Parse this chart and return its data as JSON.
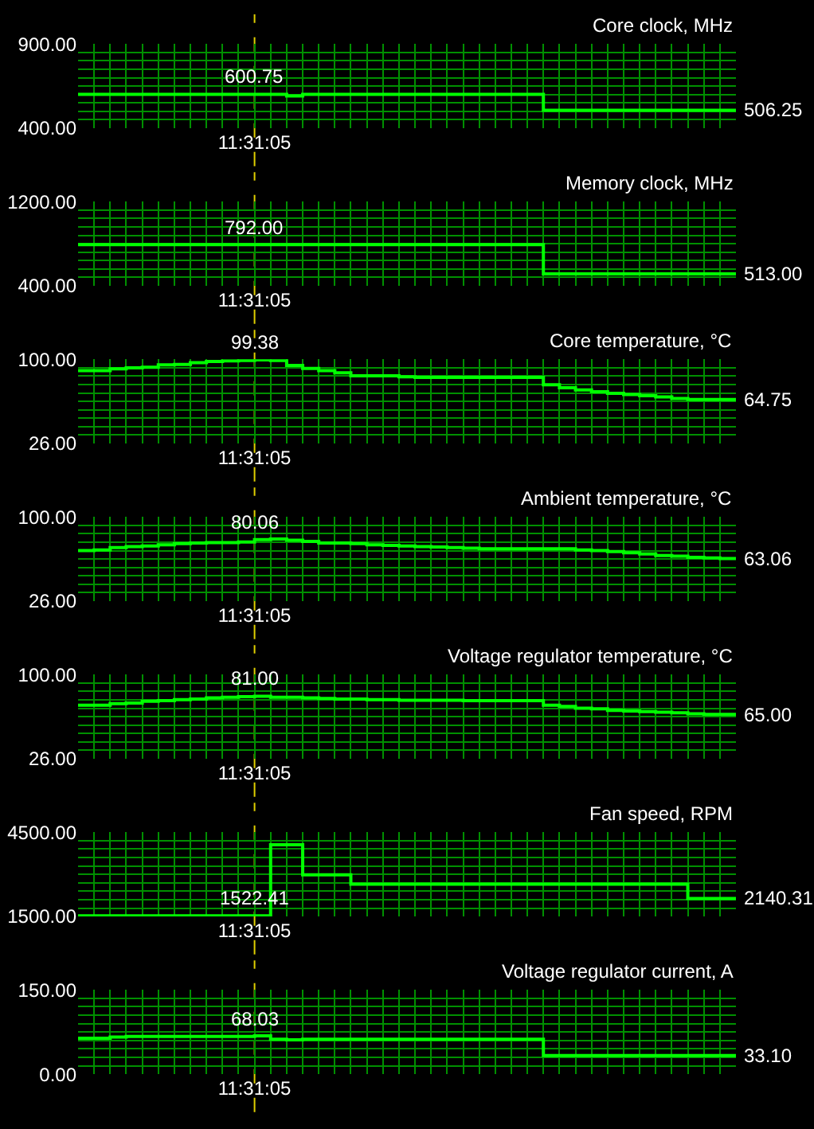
{
  "chart_data": [
    {
      "type": "step",
      "title": "Core clock, MHz",
      "categories": [
        null,
        null,
        null,
        null,
        null,
        null,
        null,
        null,
        null,
        null,
        null,
        "11:31:05",
        null,
        null,
        null,
        null,
        null,
        null,
        null,
        null,
        null,
        null,
        null,
        null,
        null,
        null,
        null,
        null,
        null,
        null,
        null,
        null,
        null,
        null,
        null,
        null,
        null,
        null,
        null,
        null,
        null,
        null
      ],
      "series": [
        {
          "color": "#00ff00",
          "values": [
            600.75,
            600.75,
            600.75,
            600.75,
            600.75,
            600.75,
            600.75,
            600.75,
            600.75,
            600.75,
            600.75,
            600.75,
            600.75,
            592,
            600.75,
            600.75,
            600.75,
            600.75,
            600.75,
            600.75,
            600.75,
            600.75,
            600.75,
            600.75,
            600.75,
            600.75,
            600.75,
            600.75,
            600.75,
            506.25,
            506.25,
            506.25,
            506.25,
            506.25,
            506.25,
            506.25,
            506.25,
            506.25,
            506.25,
            506.25,
            506.25,
            506.25
          ],
          "value_labels": [
            null,
            null,
            null,
            null,
            null,
            null,
            null,
            null,
            null,
            null,
            null,
            "600.75",
            null,
            null,
            null,
            null,
            null,
            null,
            null,
            null,
            null,
            null,
            null,
            null,
            null,
            null,
            null,
            null,
            null,
            null,
            null,
            null,
            null,
            null,
            null,
            null,
            null,
            null,
            null,
            null,
            null,
            "506.25"
          ]
        }
      ],
      "ylim": [
        400,
        900
      ],
      "yticks": [
        {
          "value": 400,
          "label": "400.00"
        },
        {
          "value": 900,
          "label": "900.00"
        }
      ],
      "grid": true,
      "ref_lines": [
        {
          "axis": "x",
          "value": "11:31:05",
          "color": "#e0d000",
          "line_style": "dashed"
        }
      ]
    },
    {
      "type": "step",
      "title": "Memory clock, MHz",
      "categories": [
        null,
        null,
        null,
        null,
        null,
        null,
        null,
        null,
        null,
        null,
        null,
        "11:31:05",
        null,
        null,
        null,
        null,
        null,
        null,
        null,
        null,
        null,
        null,
        null,
        null,
        null,
        null,
        null,
        null,
        null,
        null,
        null,
        null,
        null,
        null,
        null,
        null,
        null,
        null,
        null,
        null,
        null,
        null
      ],
      "series": [
        {
          "color": "#00ff00",
          "values": [
            792,
            792,
            792,
            792,
            792,
            792,
            792,
            792,
            792,
            792,
            792,
            792,
            792,
            792,
            792,
            792,
            792,
            792,
            792,
            792,
            792,
            792,
            792,
            792,
            792,
            792,
            792,
            792,
            792,
            513,
            513,
            513,
            513,
            513,
            513,
            513,
            513,
            513,
            513,
            513,
            513,
            513
          ],
          "value_labels": [
            null,
            null,
            null,
            null,
            null,
            null,
            null,
            null,
            null,
            null,
            null,
            "792.00",
            null,
            null,
            null,
            null,
            null,
            null,
            null,
            null,
            null,
            null,
            null,
            null,
            null,
            null,
            null,
            null,
            null,
            null,
            null,
            null,
            null,
            null,
            null,
            null,
            null,
            null,
            null,
            null,
            null,
            "513.00"
          ]
        }
      ],
      "ylim": [
        400,
        1200
      ],
      "yticks": [
        {
          "value": 400,
          "label": "400.00"
        },
        {
          "value": 1200,
          "label": "1200.00"
        }
      ],
      "grid": true,
      "ref_lines": [
        {
          "axis": "x",
          "value": "11:31:05",
          "color": "#e0d000",
          "line_style": "dashed"
        }
      ]
    },
    {
      "type": "step",
      "title": "Core temperature, °C",
      "categories": [
        null,
        null,
        null,
        null,
        null,
        null,
        null,
        null,
        null,
        null,
        null,
        "11:31:05",
        null,
        null,
        null,
        null,
        null,
        null,
        null,
        null,
        null,
        null,
        null,
        null,
        null,
        null,
        null,
        null,
        null,
        null,
        null,
        null,
        null,
        null,
        null,
        null,
        null,
        null,
        null,
        null,
        null,
        null
      ],
      "series": [
        {
          "color": "#00ff00",
          "values": [
            90,
            90,
            91.5,
            92.5,
            93,
            95,
            95.5,
            97,
            98,
            98.5,
            99,
            99.38,
            99,
            94.5,
            92,
            90,
            88,
            85.5,
            85.5,
            85.5,
            84.5,
            84,
            84,
            84,
            84,
            84,
            84,
            84,
            84,
            77.5,
            75,
            73,
            71.5,
            70,
            69,
            68,
            67,
            65.5,
            64.75,
            64.75,
            64.75,
            64.75
          ],
          "value_labels": [
            null,
            null,
            null,
            null,
            null,
            null,
            null,
            null,
            null,
            null,
            null,
            "99.38",
            null,
            null,
            null,
            null,
            null,
            null,
            null,
            null,
            null,
            null,
            null,
            null,
            null,
            null,
            null,
            null,
            null,
            null,
            null,
            null,
            null,
            null,
            null,
            null,
            null,
            null,
            null,
            null,
            null,
            "64.75"
          ]
        }
      ],
      "ylim": [
        26,
        100
      ],
      "yticks": [
        {
          "value": 26,
          "label": "26.00"
        },
        {
          "value": 100,
          "label": "100.00"
        }
      ],
      "grid": true,
      "ref_lines": [
        {
          "axis": "x",
          "value": "11:31:05",
          "color": "#e0d000",
          "line_style": "dashed"
        }
      ]
    },
    {
      "type": "step",
      "title": "Ambient temperature, °C",
      "categories": [
        null,
        null,
        null,
        null,
        null,
        null,
        null,
        null,
        null,
        null,
        null,
        "11:31:05",
        null,
        null,
        null,
        null,
        null,
        null,
        null,
        null,
        null,
        null,
        null,
        null,
        null,
        null,
        null,
        null,
        null,
        null,
        null,
        null,
        null,
        null,
        null,
        null,
        null,
        null,
        null,
        null,
        null,
        null
      ],
      "series": [
        {
          "color": "#00ff00",
          "values": [
            70.5,
            71,
            73,
            74,
            74.5,
            75.5,
            76.5,
            77,
            77.5,
            77.5,
            78,
            80.06,
            80.5,
            79.5,
            78.5,
            77,
            77,
            76.5,
            75.5,
            75,
            74.5,
            74,
            73.5,
            73,
            72.5,
            72,
            72,
            72,
            72,
            72,
            72,
            71,
            70.5,
            69.5,
            68.5,
            67.5,
            66,
            65.5,
            64.5,
            64,
            63.5,
            63.06
          ],
          "value_labels": [
            null,
            null,
            null,
            null,
            null,
            null,
            null,
            null,
            null,
            null,
            null,
            "80.06",
            null,
            null,
            null,
            null,
            null,
            null,
            null,
            null,
            null,
            null,
            null,
            null,
            null,
            null,
            null,
            null,
            null,
            null,
            null,
            null,
            null,
            null,
            null,
            null,
            null,
            null,
            null,
            null,
            null,
            "63.06"
          ]
        }
      ],
      "ylim": [
        26,
        100
      ],
      "yticks": [
        {
          "value": 26,
          "label": "26.00"
        },
        {
          "value": 100,
          "label": "100.00"
        }
      ],
      "grid": true,
      "ref_lines": [
        {
          "axis": "x",
          "value": "11:31:05",
          "color": "#e0d000",
          "line_style": "dashed"
        }
      ]
    },
    {
      "type": "step",
      "title": "Voltage regulator temperature, °C",
      "categories": [
        null,
        null,
        null,
        null,
        null,
        null,
        null,
        null,
        null,
        null,
        null,
        "11:31:05",
        null,
        null,
        null,
        null,
        null,
        null,
        null,
        null,
        null,
        null,
        null,
        null,
        null,
        null,
        null,
        null,
        null,
        null,
        null,
        null,
        null,
        null,
        null,
        null,
        null,
        null,
        null,
        null,
        null,
        null
      ],
      "series": [
        {
          "color": "#00ff00",
          "values": [
            73,
            73,
            74.5,
            75,
            76.5,
            77,
            78,
            78.5,
            79.5,
            80,
            80.5,
            81,
            80,
            80,
            79.5,
            79,
            78.5,
            78.5,
            78,
            78,
            77.5,
            77.5,
            77.5,
            77.5,
            77,
            77,
            77,
            77,
            77,
            73,
            72,
            70.5,
            70,
            68.5,
            68,
            67.5,
            67,
            66.5,
            65.5,
            65,
            65,
            65
          ],
          "value_labels": [
            null,
            null,
            null,
            null,
            null,
            null,
            null,
            null,
            null,
            null,
            null,
            "81.00",
            null,
            null,
            null,
            null,
            null,
            null,
            null,
            null,
            null,
            null,
            null,
            null,
            null,
            null,
            null,
            null,
            null,
            null,
            null,
            null,
            null,
            null,
            null,
            null,
            null,
            null,
            null,
            null,
            null,
            "65.00"
          ]
        }
      ],
      "ylim": [
        26,
        100
      ],
      "yticks": [
        {
          "value": 26,
          "label": "26.00"
        },
        {
          "value": 100,
          "label": "100.00"
        }
      ],
      "grid": true,
      "ref_lines": [
        {
          "axis": "x",
          "value": "11:31:05",
          "color": "#e0d000",
          "line_style": "dashed"
        }
      ]
    },
    {
      "type": "step",
      "title": "Fan speed, RPM",
      "categories": [
        null,
        null,
        null,
        null,
        null,
        null,
        null,
        null,
        null,
        null,
        null,
        "11:31:05",
        null,
        null,
        null,
        null,
        null,
        null,
        null,
        null,
        null,
        null,
        null,
        null,
        null,
        null,
        null,
        null,
        null,
        null,
        null,
        null,
        null,
        null,
        null,
        null,
        null,
        null,
        null,
        null,
        null,
        null
      ],
      "series": [
        {
          "color": "#00ff00",
          "values": [
            1522.41,
            1522.41,
            1522.41,
            1522.41,
            1522.41,
            1522.41,
            1522.41,
            1522.41,
            1522.41,
            1522.41,
            1522.41,
            1522.41,
            4050,
            4050,
            2980,
            2980,
            2980,
            2650,
            2650,
            2650,
            2650,
            2650,
            2650,
            2650,
            2650,
            2650,
            2650,
            2650,
            2650,
            2650,
            2650,
            2650,
            2650,
            2650,
            2650,
            2650,
            2650,
            2650,
            2140.31,
            2140.31,
            2140.31,
            2140.31
          ],
          "value_labels": [
            null,
            null,
            null,
            null,
            null,
            null,
            null,
            null,
            null,
            null,
            null,
            "1522.41",
            null,
            null,
            null,
            null,
            null,
            null,
            null,
            null,
            null,
            null,
            null,
            null,
            null,
            null,
            null,
            null,
            null,
            null,
            null,
            null,
            null,
            null,
            null,
            null,
            null,
            null,
            null,
            null,
            null,
            "2140.31"
          ]
        }
      ],
      "ylim": [
        1500,
        4500
      ],
      "yticks": [
        {
          "value": 1500,
          "label": "1500.00"
        },
        {
          "value": 4500,
          "label": "4500.00"
        }
      ],
      "grid": true,
      "ref_lines": [
        {
          "axis": "x",
          "value": "11:31:05",
          "color": "#e0d000",
          "line_style": "dashed"
        }
      ]
    },
    {
      "type": "step",
      "title": "Voltage regulator current, A",
      "categories": [
        null,
        null,
        null,
        null,
        null,
        null,
        null,
        null,
        null,
        null,
        null,
        "11:31:05",
        null,
        null,
        null,
        null,
        null,
        null,
        null,
        null,
        null,
        null,
        null,
        null,
        null,
        null,
        null,
        null,
        null,
        null,
        null,
        null,
        null,
        null,
        null,
        null,
        null,
        null,
        null,
        null,
        null,
        null
      ],
      "series": [
        {
          "color": "#00ff00",
          "values": [
            64,
            64,
            66,
            67,
            67,
            67,
            67,
            67,
            67,
            67,
            67,
            68.03,
            62,
            61,
            62,
            62,
            62,
            62,
            62,
            62,
            62,
            62,
            62,
            62,
            62,
            62,
            62,
            62,
            62,
            33.1,
            33.1,
            33.1,
            33.1,
            33.1,
            33.1,
            33.1,
            33.1,
            33.1,
            33.1,
            33.1,
            33.1,
            33.1
          ],
          "value_labels": [
            null,
            null,
            null,
            null,
            null,
            null,
            null,
            null,
            null,
            null,
            null,
            "68.03",
            null,
            null,
            null,
            null,
            null,
            null,
            null,
            null,
            null,
            null,
            null,
            null,
            null,
            null,
            null,
            null,
            null,
            null,
            null,
            null,
            null,
            null,
            null,
            null,
            null,
            null,
            null,
            null,
            null,
            "33.10"
          ]
        }
      ],
      "ylim": [
        0,
        150
      ],
      "yticks": [
        {
          "value": 0,
          "label": "0.00"
        },
        {
          "value": 150,
          "label": "150.00"
        }
      ],
      "grid": true,
      "ref_lines": [
        {
          "axis": "x",
          "value": "11:31:05",
          "color": "#e0d000",
          "line_style": "dashed"
        }
      ]
    }
  ]
}
